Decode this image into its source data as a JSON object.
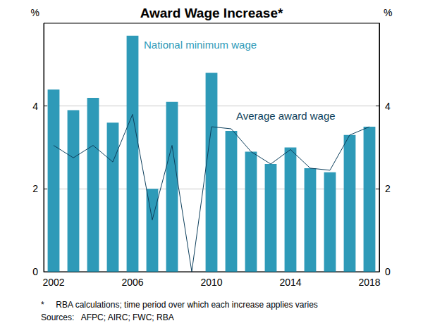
{
  "chart_data": {
    "type": "bar",
    "title": "Award Wage Increase*",
    "ylabel": "%",
    "categories": [
      "2002",
      null,
      null,
      null,
      "2006",
      null,
      null,
      null,
      "2010",
      null,
      null,
      null,
      "2014",
      null,
      null,
      null,
      "2018"
    ],
    "series": [
      {
        "name": "National minimum wage",
        "type": "bar",
        "color": "#2e9ab8",
        "values": [
          4.4,
          3.9,
          4.2,
          3.6,
          5.7,
          2.0,
          4.1,
          0,
          4.8,
          3.4,
          2.9,
          2.6,
          3.0,
          2.5,
          2.4,
          3.3,
          3.5
        ]
      },
      {
        "name": "Average award wage",
        "type": "line",
        "color": "#0d3f5c",
        "values": [
          3.05,
          2.75,
          3.05,
          2.65,
          3.8,
          1.25,
          3.05,
          0,
          3.5,
          3.45,
          2.9,
          2.6,
          2.95,
          2.5,
          2.45,
          3.3,
          3.5
        ]
      }
    ],
    "ylim": [
      0,
      6
    ],
    "yticks": [
      0,
      2,
      4
    ],
    "y2lim": [
      0,
      6
    ],
    "y2ticks": [
      0,
      2,
      4
    ],
    "grid": true,
    "notes": [
      "*     RBA calculations; time period over which each increase applies varies",
      "Sources:   AFPC; AIRC; FWC; RBA"
    ]
  }
}
